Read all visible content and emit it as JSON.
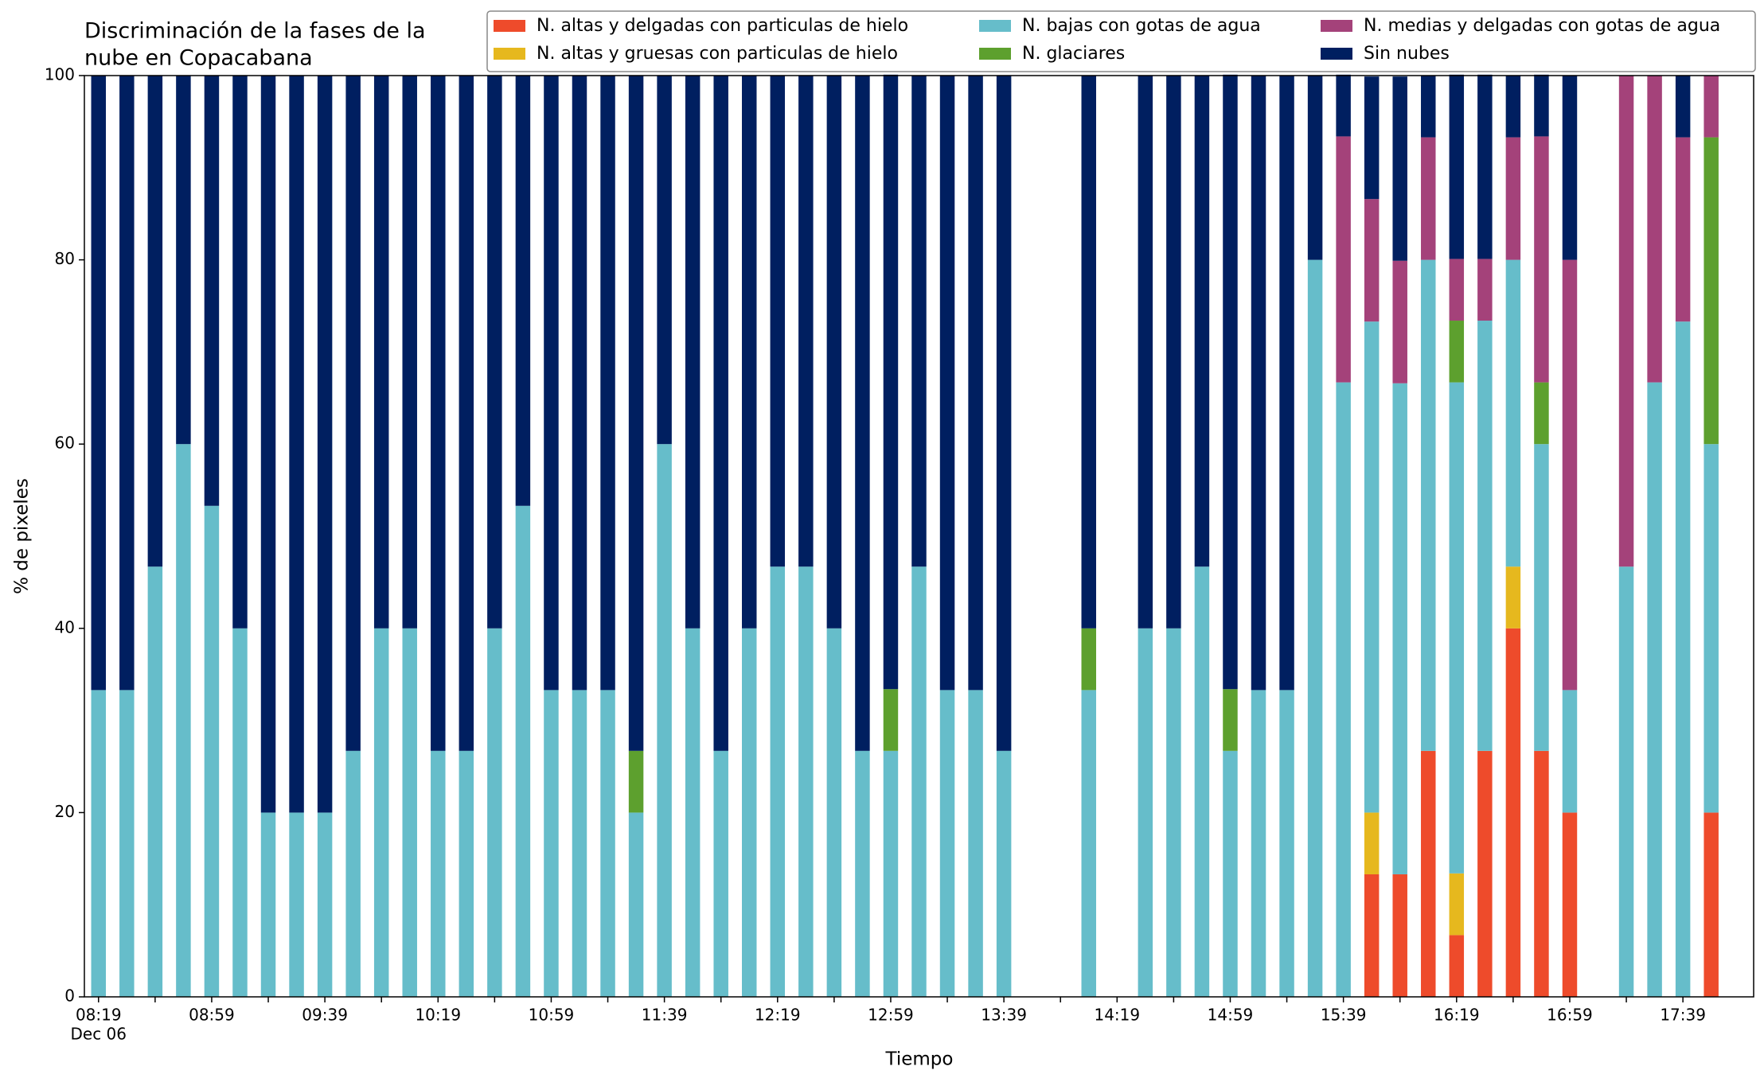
{
  "chart_data": {
    "type": "stacked_bar",
    "title": "Discriminación de la fases de la nube en Copacabana",
    "xlabel": "Tiempo",
    "ylabel": "% de pixeles",
    "x_date_label": "Dec 06",
    "categories": [
      "08:19",
      null,
      null,
      null,
      "08:59",
      null,
      null,
      null,
      "09:39",
      null,
      null,
      null,
      "10:19",
      null,
      null,
      null,
      "10:59",
      null,
      null,
      null,
      "11:39",
      null,
      null,
      null,
      "12:19",
      null,
      null,
      null,
      "12:59",
      null,
      null,
      null,
      "13:39",
      null,
      null,
      null,
      "14:19",
      null,
      null,
      null,
      "14:59",
      null,
      null,
      null,
      "15:39",
      null,
      null,
      null,
      "16:19",
      null,
      null,
      null,
      "16:59",
      null,
      null,
      null,
      "17:39",
      null
    ],
    "ylim": [
      0,
      100
    ],
    "yticks": [
      0,
      20,
      40,
      60,
      80,
      100
    ],
    "legend": "upper right",
    "series": [
      {
        "name": "N. altas y delgadas con particulas de hielo",
        "color": "#ee4b2b",
        "values": [
          0,
          0,
          0,
          0,
          0,
          0,
          0,
          0,
          0,
          0,
          0,
          0,
          0,
          0,
          0,
          0,
          0,
          0,
          0,
          0,
          0,
          0,
          0,
          0,
          0,
          0,
          0,
          0,
          0,
          0,
          0,
          0,
          0,
          0,
          0,
          0,
          0,
          0,
          0,
          0,
          0,
          0,
          0,
          0,
          0,
          13.3,
          13.3,
          26.7,
          6.7,
          26.7,
          40,
          26.7,
          20,
          0,
          0,
          0,
          0,
          20
        ]
      },
      {
        "name": "N. altas y gruesas con particulas de hielo",
        "color": "#e6b81e",
        "values": [
          0,
          0,
          0,
          0,
          0,
          0,
          0,
          0,
          0,
          0,
          0,
          0,
          0,
          0,
          0,
          0,
          0,
          0,
          0,
          0,
          0,
          0,
          0,
          0,
          0,
          0,
          0,
          0,
          0,
          0,
          0,
          0,
          0,
          0,
          0,
          0,
          0,
          0,
          0,
          0,
          0,
          0,
          0,
          0,
          0,
          6.7,
          0,
          0,
          6.7,
          0,
          6.7,
          0,
          0,
          0,
          0,
          0,
          0,
          0
        ]
      },
      {
        "name": "N. bajas con gotas de agua",
        "color": "#66bdca",
        "values": [
          33.3,
          33.3,
          46.7,
          60,
          53.3,
          40,
          20,
          20,
          20,
          26.7,
          40,
          40,
          26.7,
          26.7,
          40,
          53.3,
          33.3,
          33.3,
          33.3,
          20,
          60,
          40,
          26.7,
          40,
          46.7,
          46.7,
          40,
          26.7,
          26.7,
          46.7,
          33.3,
          33.3,
          26.7,
          0,
          0,
          33.3,
          0,
          40,
          40,
          46.7,
          26.7,
          33.3,
          33.3,
          80,
          66.7,
          53.3,
          53.3,
          53.3,
          53.3,
          46.7,
          33.3,
          33.3,
          13.3,
          0,
          46.7,
          66.7,
          73.3,
          40
        ]
      },
      {
        "name": "N. glaciares",
        "color": "#5da02e",
        "values": [
          0,
          0,
          0,
          0,
          0,
          0,
          0,
          0,
          0,
          0,
          0,
          0,
          0,
          0,
          0,
          0,
          0,
          0,
          0,
          6.7,
          0,
          0,
          0,
          0,
          0,
          0,
          0,
          0,
          6.7,
          0,
          0,
          0,
          0,
          0,
          0,
          6.7,
          0,
          0,
          0,
          0,
          6.7,
          0,
          0,
          0,
          0,
          0,
          0,
          0,
          6.7,
          0,
          0,
          6.7,
          0,
          0,
          0,
          0,
          0,
          33.3
        ]
      },
      {
        "name": "N. medias y delgadas con gotas de agua",
        "color": "#a4427a",
        "values": [
          0,
          0,
          0,
          0,
          0,
          0,
          0,
          0,
          0,
          0,
          0,
          0,
          0,
          0,
          0,
          0,
          0,
          0,
          0,
          0,
          0,
          0,
          0,
          0,
          0,
          0,
          0,
          0,
          0,
          0,
          0,
          0,
          0,
          0,
          0,
          0,
          0,
          0,
          0,
          0,
          0,
          0,
          0,
          0,
          26.7,
          13.3,
          13.3,
          13.3,
          6.7,
          6.7,
          13.3,
          26.7,
          46.7,
          0,
          53.3,
          33.3,
          20,
          6.7
        ]
      },
      {
        "name": "Sin nubes",
        "color": "#001f60",
        "values": [
          66.7,
          66.7,
          53.3,
          40,
          46.7,
          60,
          80,
          80,
          80,
          73.3,
          60,
          60,
          73.3,
          73.3,
          60,
          46.7,
          66.7,
          66.7,
          66.7,
          73.3,
          40,
          60,
          73.3,
          60,
          53.3,
          53.3,
          60,
          73.3,
          66.7,
          53.3,
          66.7,
          66.7,
          73.3,
          0,
          0,
          60,
          0,
          60,
          60,
          53.3,
          66.7,
          66.7,
          66.7,
          20,
          6.7,
          13.3,
          20,
          6.7,
          20,
          20,
          6.7,
          6.7,
          20,
          0,
          0,
          0,
          6.7,
          0
        ]
      }
    ]
  }
}
